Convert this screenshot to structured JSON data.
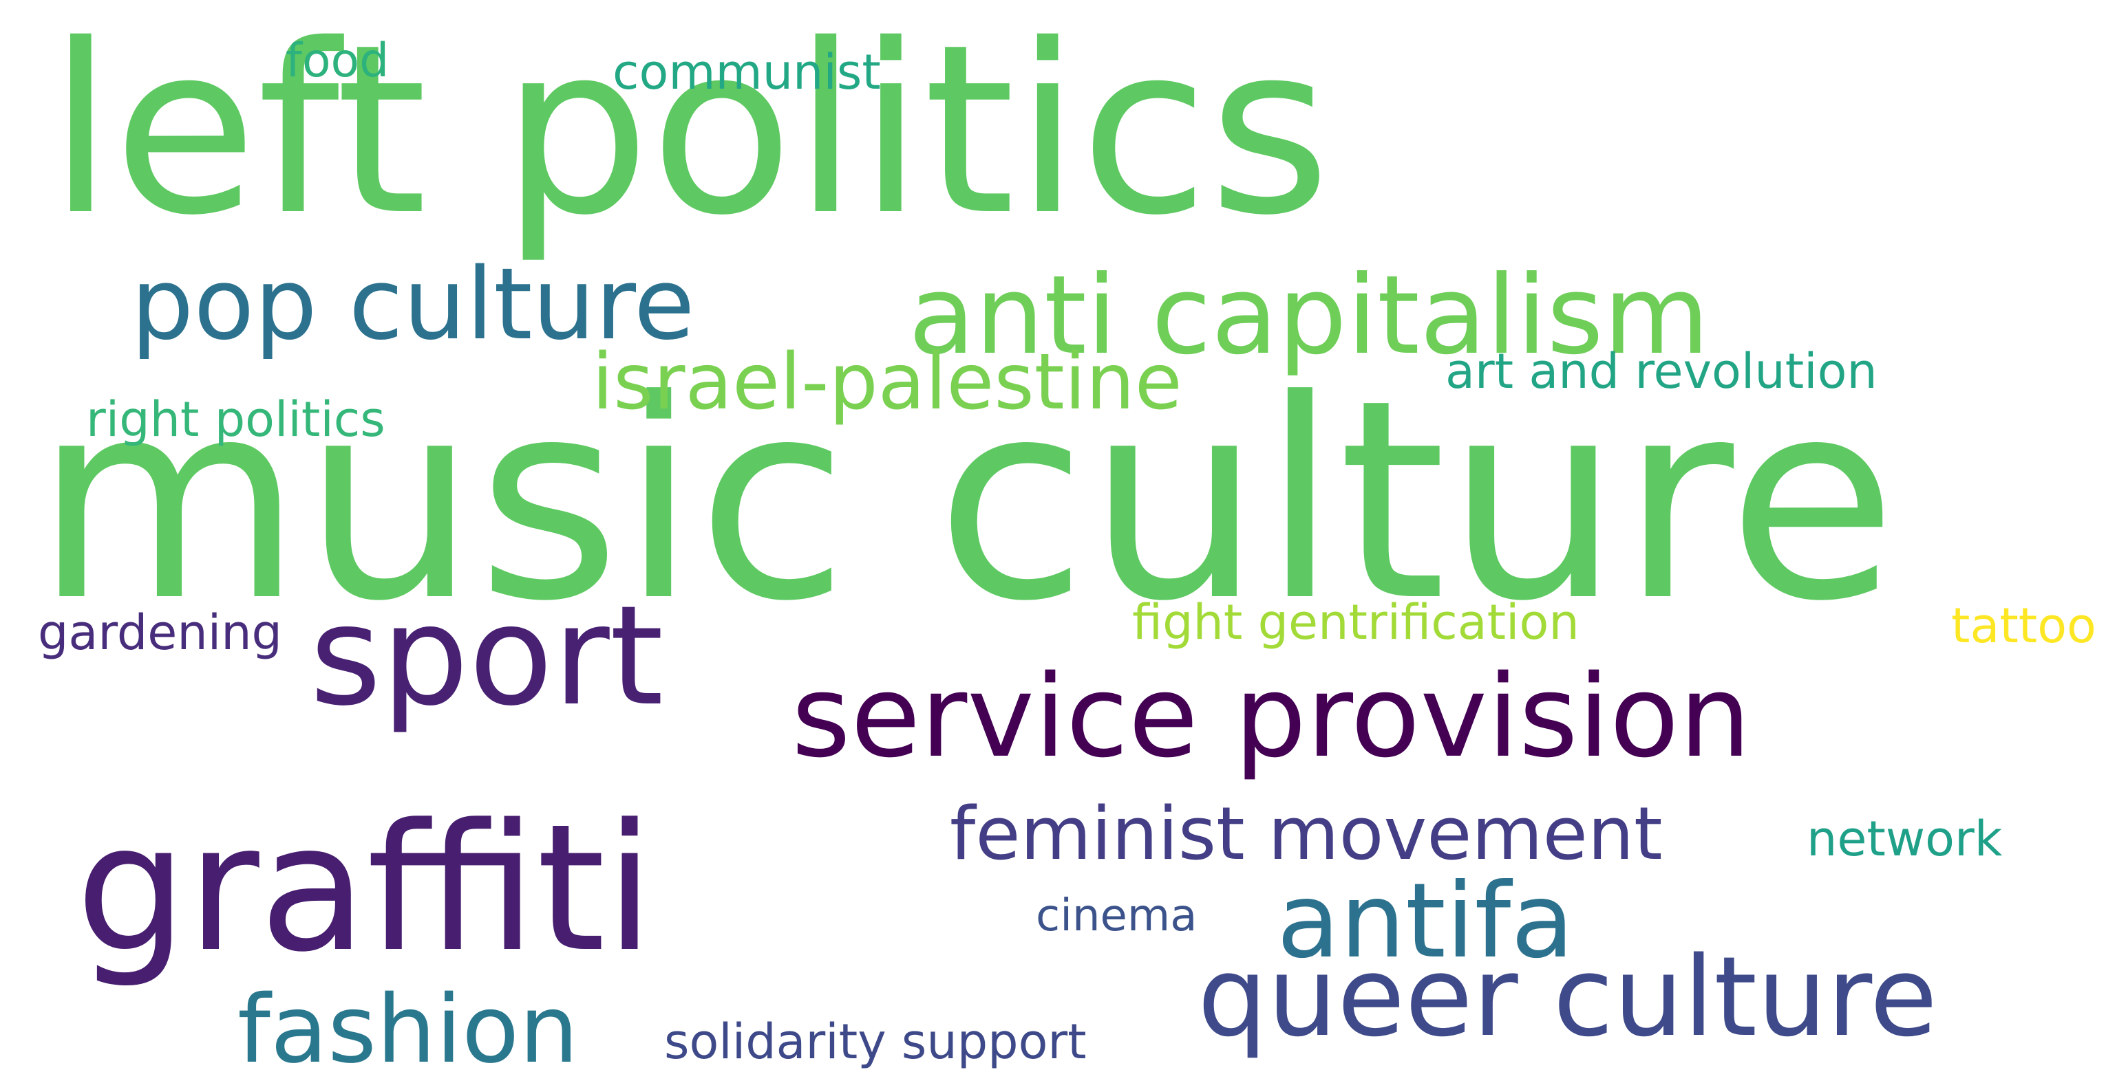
{
  "wordcloud": {
    "words": [
      {
        "text": "left politics",
        "color": "#5ec962"
      },
      {
        "text": "music culture",
        "color": "#5ec962"
      },
      {
        "text": "anti capitalism",
        "color": "#6ece58"
      },
      {
        "text": "pop culture",
        "color": "#2c728e"
      },
      {
        "text": "israel-palestine",
        "color": "#7ad151"
      },
      {
        "text": "art and revolution",
        "color": "#21a585"
      },
      {
        "text": "right politics",
        "color": "#35b779"
      },
      {
        "text": "food",
        "color": "#2db27d"
      },
      {
        "text": "communist",
        "color": "#22a884"
      },
      {
        "text": "sport",
        "color": "#482173"
      },
      {
        "text": "service provision",
        "color": "#440154"
      },
      {
        "text": "gardening",
        "color": "#472d7b"
      },
      {
        "text": "fight gentrification",
        "color": "#a2da37"
      },
      {
        "text": "tattoo",
        "color": "#fde725"
      },
      {
        "text": "graffiti",
        "color": "#481f70"
      },
      {
        "text": "feminist movement",
        "color": "#433e85"
      },
      {
        "text": "network",
        "color": "#1fa088"
      },
      {
        "text": "antifa",
        "color": "#2c728e"
      },
      {
        "text": "cinema",
        "color": "#3b528b"
      },
      {
        "text": "queer culture",
        "color": "#3e4a89"
      },
      {
        "text": "fashion",
        "color": "#2a788e"
      },
      {
        "text": "solidarity support",
        "color": "#3e4989"
      }
    ]
  }
}
